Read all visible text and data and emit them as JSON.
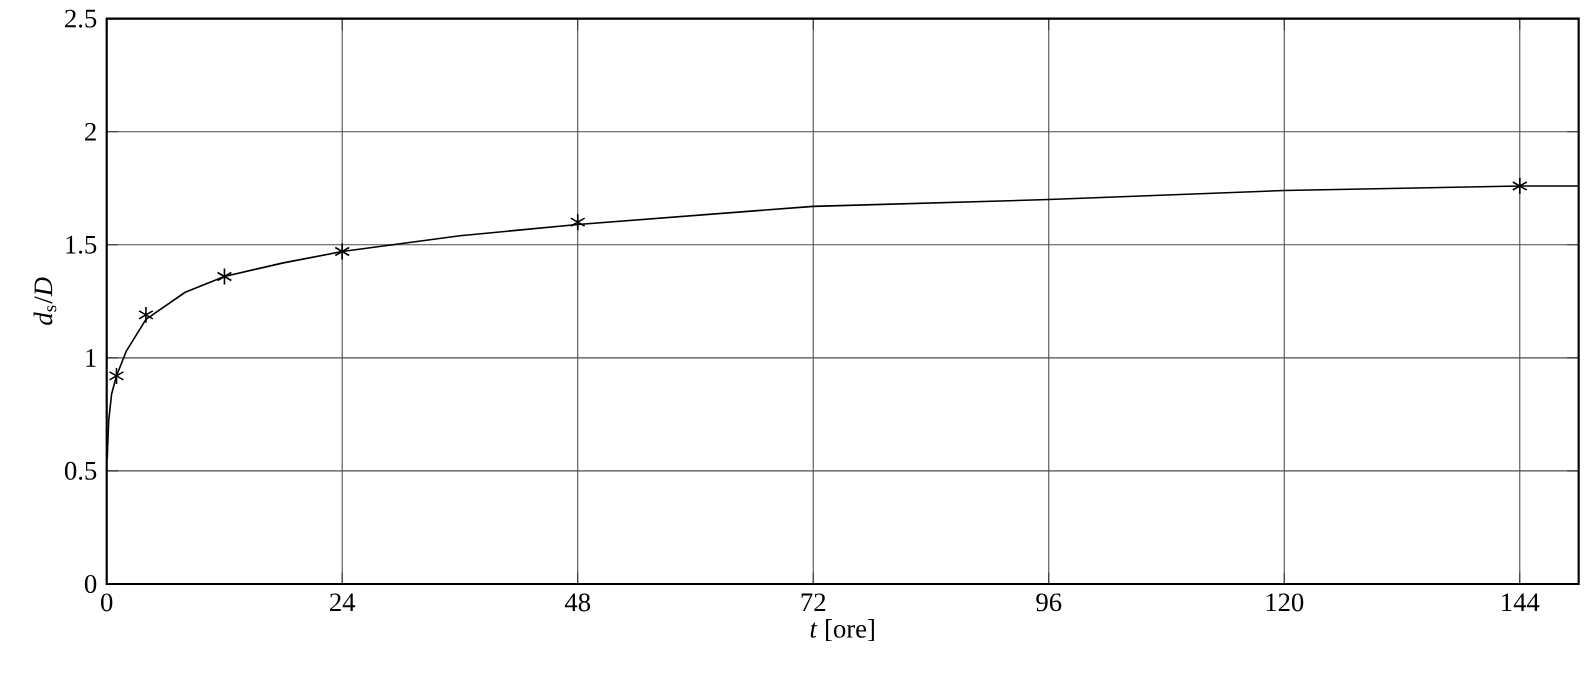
{
  "chart_data": {
    "type": "line",
    "xlabel": "*t* [ore]",
    "ylabel": "*d*$_{s}$/*D*",
    "xlim": [
      0,
      150
    ],
    "ylim": [
      0,
      2.5
    ],
    "xticks": [
      0,
      24,
      48,
      72,
      96,
      120,
      144
    ],
    "yticks": [
      0,
      0.5,
      1,
      1.5,
      2,
      2.5
    ],
    "grid": true,
    "series": [
      {
        "color": "#000000",
        "marker": "none",
        "line_style": "solid",
        "x": [
          0.05,
          0.2,
          0.5,
          1,
          2,
          4,
          8,
          12,
          18,
          24,
          36,
          48,
          72,
          96,
          120,
          144,
          150
        ],
        "values": [
          0.55,
          0.72,
          0.84,
          0.92,
          1.03,
          1.17,
          1.29,
          1.36,
          1.42,
          1.47,
          1.54,
          1.59,
          1.67,
          1.7,
          1.74,
          1.76,
          1.76
        ]
      },
      {
        "type": "scatter",
        "color": "#000000",
        "marker": "cross",
        "x": [
          1,
          4,
          12,
          24,
          48,
          144
        ],
        "values": [
          0.92,
          1.19,
          1.36,
          1.47,
          1.6,
          1.76
        ]
      }
    ]
  }
}
